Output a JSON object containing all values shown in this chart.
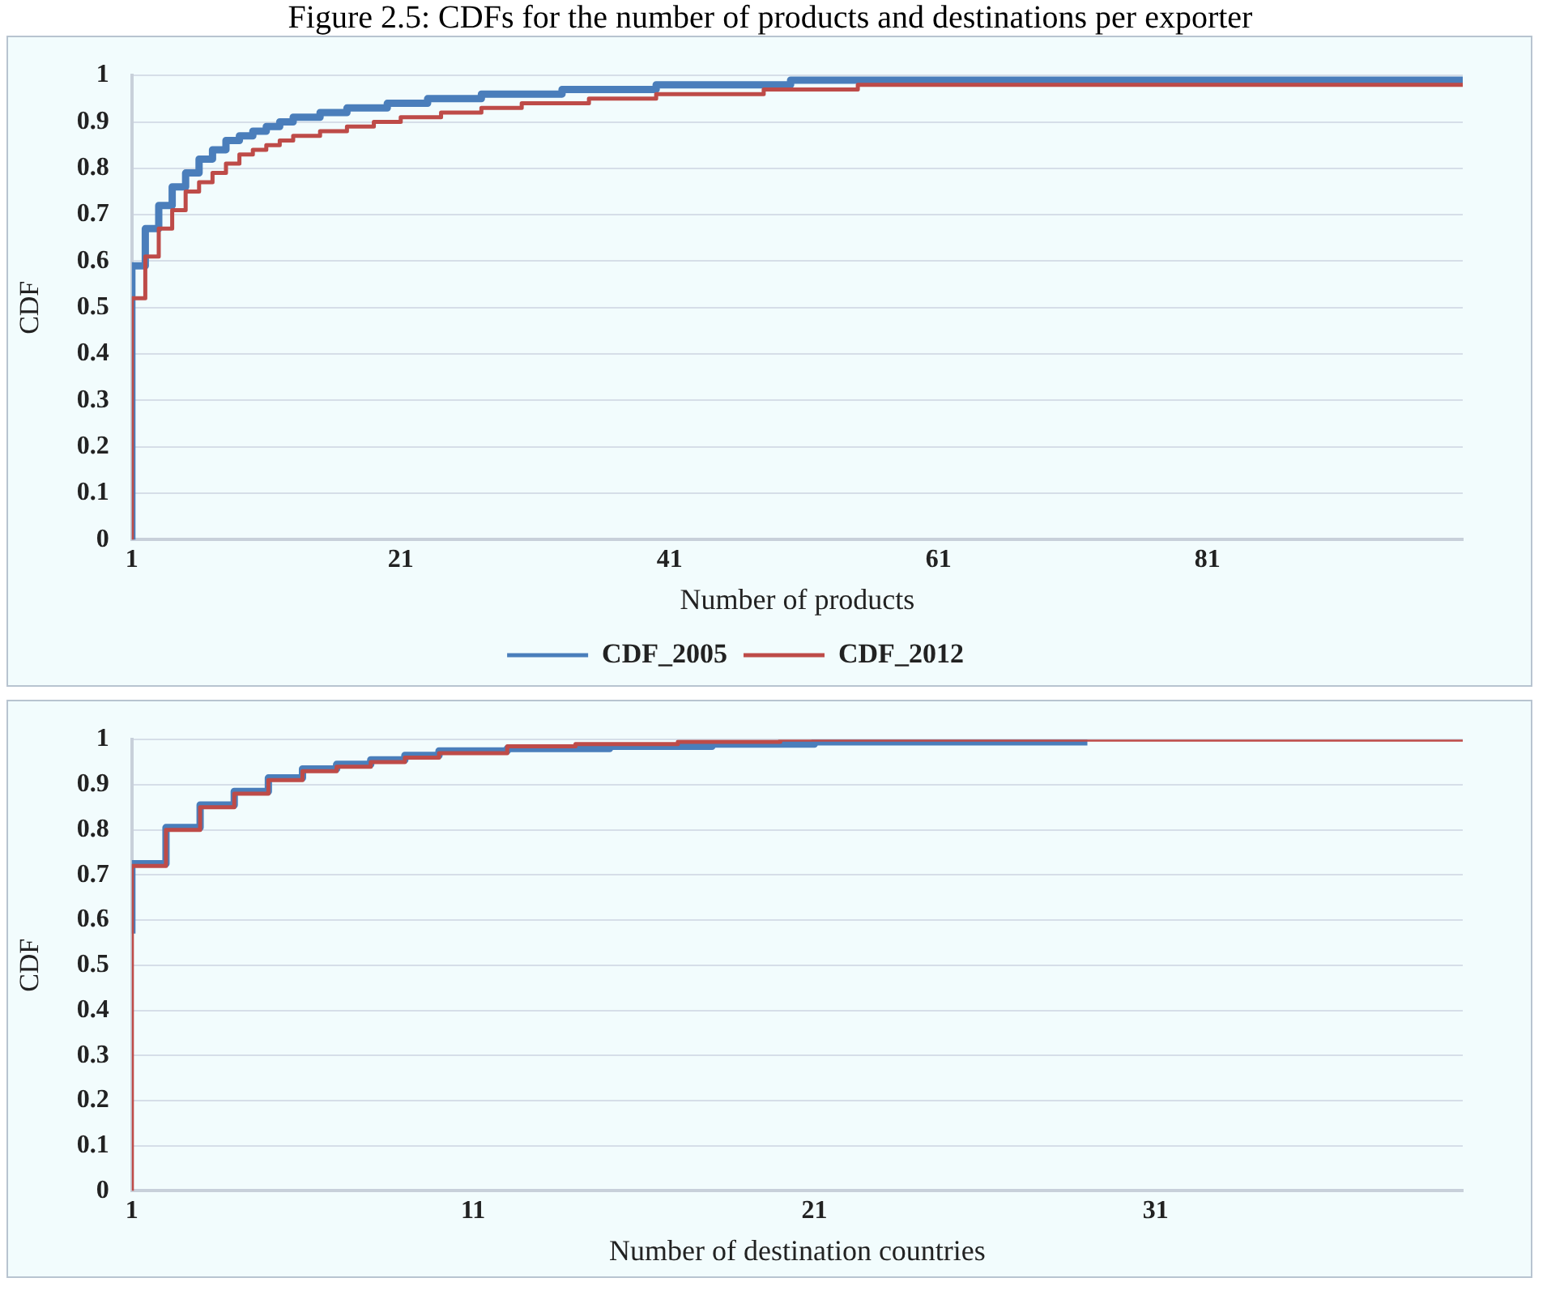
{
  "chart_data": [
    {
      "type": "step",
      "title": "Figure 2.5: CDFs for the number of products and destinations per exporter",
      "xlabel": "Number of products",
      "ylabel": "CDF",
      "xlim": [
        1,
        100
      ],
      "xticks": [
        1,
        21,
        41,
        61,
        81
      ],
      "ylim": [
        0,
        1
      ],
      "yticks": [
        0,
        0.1,
        0.2,
        0.3,
        0.4,
        0.5,
        0.6,
        0.7,
        0.8,
        0.9,
        1
      ],
      "grid": "y",
      "legend": "bottom",
      "series": [
        {
          "name": "CDF_2005",
          "color": "#4a7ebb",
          "x": [
            1,
            1,
            2,
            3,
            4,
            5,
            6,
            7,
            8,
            9,
            10,
            11,
            12,
            13,
            15,
            17,
            20,
            23,
            27,
            33,
            40,
            50,
            70,
            100
          ],
          "values": [
            0,
            0.44,
            0.59,
            0.67,
            0.72,
            0.76,
            0.79,
            0.82,
            0.84,
            0.86,
            0.87,
            0.88,
            0.89,
            0.9,
            0.91,
            0.92,
            0.93,
            0.94,
            0.95,
            0.96,
            0.97,
            0.98,
            0.99,
            0.99
          ]
        },
        {
          "name": "CDF_2012",
          "color": "#be4b48",
          "x": [
            1,
            1,
            2,
            3,
            4,
            5,
            6,
            7,
            8,
            9,
            10,
            11,
            12,
            13,
            15,
            17,
            19,
            21,
            24,
            27,
            30,
            35,
            40,
            48,
            55,
            75,
            100
          ],
          "values": [
            0,
            0.37,
            0.52,
            0.61,
            0.67,
            0.71,
            0.75,
            0.77,
            0.79,
            0.81,
            0.83,
            0.84,
            0.85,
            0.86,
            0.87,
            0.88,
            0.89,
            0.9,
            0.91,
            0.92,
            0.93,
            0.94,
            0.95,
            0.96,
            0.97,
            0.98,
            0.98
          ]
        }
      ]
    },
    {
      "type": "step",
      "xlabel": "Number of destination countries",
      "ylabel": "CDF",
      "xlim": [
        1,
        40
      ],
      "xticks": [
        1,
        11,
        21,
        31
      ],
      "ylim": [
        0,
        1
      ],
      "yticks": [
        0,
        0.1,
        0.2,
        0.3,
        0.4,
        0.5,
        0.6,
        0.7,
        0.8,
        0.9,
        1
      ],
      "grid": "y",
      "series": [
        {
          "color": "#4a7ebb",
          "x": [
            1,
            2,
            3,
            4,
            5,
            6,
            7,
            8,
            9,
            10,
            12,
            15,
            18,
            21,
            29
          ],
          "values": [
            0.57,
            0.725,
            0.805,
            0.855,
            0.885,
            0.915,
            0.935,
            0.945,
            0.955,
            0.965,
            0.975,
            0.98,
            0.985,
            0.99,
            0.995
          ]
        },
        {
          "color": "#be4b48",
          "x": [
            1,
            1,
            2,
            3,
            4,
            5,
            6,
            7,
            8,
            9,
            10,
            12,
            14,
            17,
            20,
            25,
            40
          ],
          "values": [
            0,
            0.55,
            0.72,
            0.8,
            0.85,
            0.88,
            0.91,
            0.93,
            0.94,
            0.95,
            0.96,
            0.97,
            0.985,
            0.99,
            0.995,
            1,
            1
          ]
        }
      ]
    }
  ]
}
